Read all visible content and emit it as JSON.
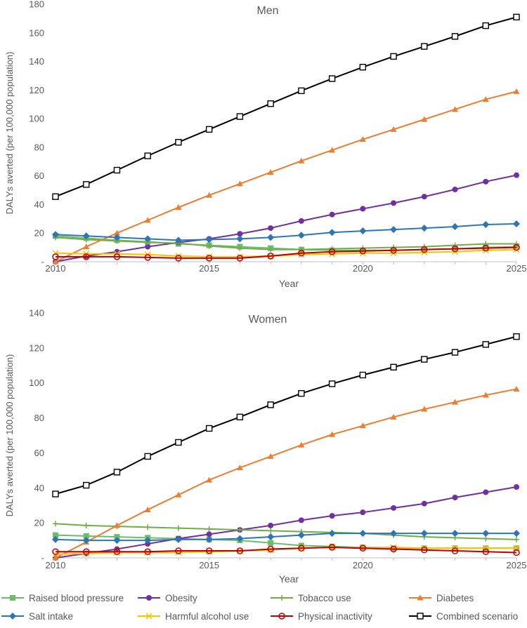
{
  "chart_data": [
    {
      "type": "line",
      "title": "Men",
      "xlabel": "Year",
      "ylabel": "DALYs averted (per 100,000 population)",
      "x": [
        2010,
        2011,
        2012,
        2013,
        2014,
        2015,
        2016,
        2017,
        2018,
        2019,
        2020,
        2021,
        2022,
        2023,
        2024,
        2025
      ],
      "xlim": [
        2010,
        2025
      ],
      "ylim": [
        0,
        180
      ],
      "xticks": [
        2010,
        2015,
        2020,
        2025
      ],
      "yticks": [
        0,
        20,
        40,
        60,
        80,
        100,
        120,
        140,
        160,
        180
      ],
      "yticklabels": [
        "-",
        "20",
        "40",
        "60",
        "80",
        "100",
        "120",
        "140",
        "160",
        "180"
      ],
      "series": [
        {
          "key": "raised-blood-pressure",
          "name": "Raised blood pressure",
          "values": [
            18,
            16.5,
            15,
            14,
            12.5,
            11.5,
            10.5,
            9.5,
            8.5,
            8,
            8,
            8,
            8.5,
            9,
            10,
            10.5
          ]
        },
        {
          "key": "obesity",
          "name": "Obesity",
          "values": [
            0,
            4,
            7,
            10.5,
            13.5,
            16,
            19.5,
            23.5,
            28.5,
            33,
            37,
            41,
            45.5,
            50.5,
            56,
            60.5
          ]
        },
        {
          "key": "tobacco-use",
          "name": "Tobacco use",
          "values": [
            17,
            15.5,
            14.5,
            13.5,
            13,
            11,
            9.5,
            8.5,
            8.5,
            9,
            9.5,
            10,
            10.5,
            11.5,
            12.5,
            12.5
          ]
        },
        {
          "key": "diabetes",
          "name": "Diabetes",
          "values": [
            0,
            10.5,
            20,
            29,
            38,
            46.5,
            54.5,
            62.5,
            70.5,
            78,
            85.5,
            92.5,
            99.5,
            106.5,
            113.5,
            119
          ]
        },
        {
          "key": "salt-intake",
          "name": "Salt intake",
          "values": [
            19,
            18,
            17,
            16,
            15,
            15.5,
            16,
            17,
            18.5,
            20.5,
            21.5,
            22.5,
            23.5,
            24.5,
            26,
            26.5
          ]
        },
        {
          "key": "harmful-alcohol-use",
          "name": "Harmful alcohol use",
          "values": [
            6,
            5.5,
            5.5,
            5,
            4,
            3.5,
            3.5,
            4,
            5,
            5.5,
            6,
            6,
            6.5,
            7,
            8,
            8.5
          ]
        },
        {
          "key": "physical-inactivity",
          "name": "Physical inactivity",
          "values": [
            3.5,
            3.5,
            3.5,
            3,
            2.5,
            2.5,
            2.5,
            4,
            6,
            7,
            7.5,
            8,
            8.5,
            9,
            9.5,
            10
          ]
        },
        {
          "key": "combined-scenario",
          "name": "Combined scenario",
          "values": [
            45.5,
            54,
            64,
            74,
            83.5,
            92.5,
            101.5,
            110.5,
            119.5,
            128,
            136,
            143.5,
            150.5,
            157.5,
            165,
            171
          ]
        }
      ]
    },
    {
      "type": "line",
      "title": "Women",
      "xlabel": "Year",
      "ylabel": "DALYs averted (per 100,000 population)",
      "x": [
        2010,
        2011,
        2012,
        2013,
        2014,
        2015,
        2016,
        2017,
        2018,
        2019,
        2020,
        2021,
        2022,
        2023,
        2024,
        2025
      ],
      "xlim": [
        2010,
        2025
      ],
      "ylim": [
        0,
        140
      ],
      "xticks": [
        2010,
        2015,
        2020,
        2025
      ],
      "yticks": [
        0,
        20,
        40,
        60,
        80,
        100,
        120,
        140
      ],
      "yticklabels": [
        "-",
        "20",
        "40",
        "60",
        "80",
        "100",
        "120",
        "140"
      ],
      "series": [
        {
          "key": "raised-blood-pressure",
          "name": "Raised blood pressure",
          "values": [
            13,
            12.5,
            12,
            11.5,
            11,
            10.5,
            10,
            8.5,
            7,
            6.5,
            6,
            5.5,
            5.5,
            5.5,
            5.5,
            5.5
          ]
        },
        {
          "key": "obesity",
          "name": "Obesity",
          "values": [
            0,
            2.5,
            5,
            8,
            11,
            13.5,
            16,
            18.5,
            21.5,
            24,
            26,
            28.5,
            31,
            34.5,
            37.5,
            40.5
          ]
        },
        {
          "key": "tobacco-use",
          "name": "Tobacco use",
          "values": [
            19.5,
            18.5,
            18,
            17.5,
            17,
            16.5,
            16,
            15.5,
            15,
            14.5,
            14,
            13,
            12,
            11.5,
            11,
            10.5
          ]
        },
        {
          "key": "diabetes",
          "name": "Diabetes",
          "values": [
            0,
            9,
            18.5,
            27.5,
            36,
            44.5,
            51.5,
            58,
            64.5,
            70.5,
            75.5,
            80.5,
            85,
            89,
            93,
            96.5
          ]
        },
        {
          "key": "salt-intake",
          "name": "Salt intake",
          "values": [
            10.5,
            10,
            10,
            10,
            10.5,
            10.5,
            11,
            12,
            13,
            14,
            14,
            14,
            14,
            14,
            14,
            14
          ]
        },
        {
          "key": "harmful-alcohol-use",
          "name": "Harmful alcohol use",
          "values": [
            2,
            2.5,
            3,
            3,
            3,
            3.5,
            4,
            4.5,
            5.5,
            6,
            6,
            6,
            5.5,
            5.5,
            5.5,
            5.5
          ]
        },
        {
          "key": "physical-inactivity",
          "name": "Physical inactivity",
          "values": [
            3.5,
            3.5,
            3.5,
            3.5,
            4,
            4,
            4,
            5,
            5.5,
            6,
            5.5,
            5,
            4.5,
            4,
            3.5,
            3
          ]
        },
        {
          "key": "combined-scenario",
          "name": "Combined scenario",
          "values": [
            36.5,
            41.5,
            49,
            58,
            66,
            74,
            80.5,
            87.5,
            94,
            99.5,
            104.5,
            109,
            113.5,
            117.5,
            122,
            126.5
          ]
        }
      ]
    }
  ],
  "legend": {
    "items": [
      {
        "key": "raised-blood-pressure",
        "label": "Raised blood pressure"
      },
      {
        "key": "obesity",
        "label": "Obesity"
      },
      {
        "key": "tobacco-use",
        "label": "Tobacco use"
      },
      {
        "key": "diabetes",
        "label": "Diabetes"
      },
      {
        "key": "salt-intake",
        "label": "Salt intake"
      },
      {
        "key": "harmful-alcohol-use",
        "label": "Harmful alcohol use"
      },
      {
        "key": "physical-inactivity",
        "label": "Physical inactivity"
      },
      {
        "key": "combined-scenario",
        "label": "Combined scenario"
      }
    ]
  },
  "series_styles": {
    "raised-blood-pressure": {
      "color": "#6cbd6a",
      "marker": "square-filled"
    },
    "obesity": {
      "color": "#7030a0",
      "marker": "circle-filled"
    },
    "tobacco-use": {
      "color": "#70ad47",
      "marker": "plus"
    },
    "diabetes": {
      "color": "#ed7d31",
      "marker": "triangle-filled"
    },
    "salt-intake": {
      "color": "#2e75b6",
      "marker": "diamond-filled"
    },
    "harmful-alcohol-use": {
      "color": "#ffc000",
      "marker": "x"
    },
    "physical-inactivity": {
      "color": "#c00000",
      "marker": "circle-open"
    },
    "combined-scenario": {
      "color": "#000000",
      "marker": "square-open"
    }
  }
}
